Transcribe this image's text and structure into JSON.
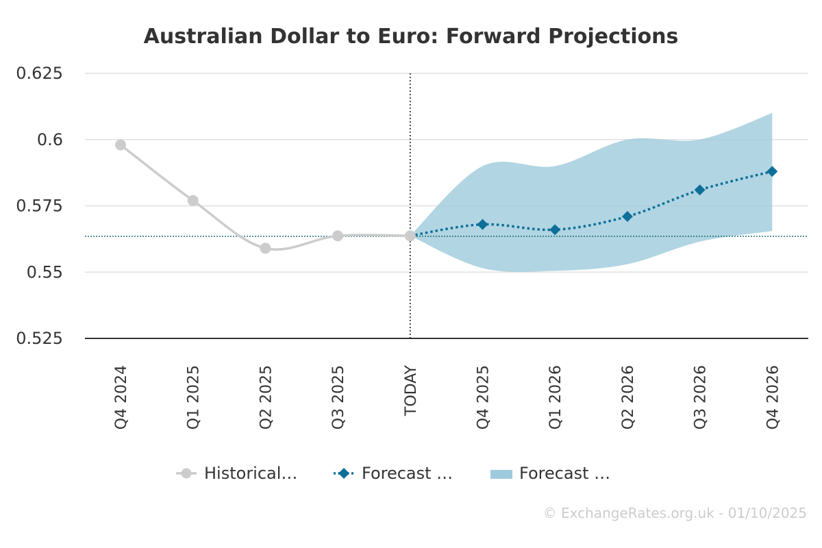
{
  "chart_data": {
    "type": "line",
    "title": "Australian Dollar to Euro: Forward Projections",
    "categories": [
      "Q4 2024",
      "Q1 2025",
      "Q2 2025",
      "Q3 2025",
      "TODAY",
      "Q4 2025",
      "Q1 2026",
      "Q2 2026",
      "Q3 2026",
      "Q4 2026"
    ],
    "ylim": [
      0.525,
      0.625
    ],
    "yticks": [
      0.525,
      0.55,
      0.575,
      0.6,
      0.625
    ],
    "ytick_labels": [
      "0.525",
      "0.55",
      "0.575",
      "0.6",
      "0.625"
    ],
    "grid": true,
    "reference_line": 0.5635,
    "today_marker": "TODAY",
    "series": [
      {
        "name": "Historical…",
        "kind": "line",
        "color": "#cccccc",
        "marker": "circle",
        "values": [
          0.598,
          0.577,
          0.559,
          0.5637,
          0.5637,
          null,
          null,
          null,
          null,
          null
        ]
      },
      {
        "name": "Forecast …",
        "kind": "dotted-line",
        "color": "#0e6f99",
        "marker": "diamond",
        "values": [
          null,
          null,
          null,
          null,
          0.5637,
          0.568,
          0.566,
          0.571,
          0.581,
          0.588
        ]
      },
      {
        "name": "Forecast …",
        "kind": "range",
        "color": "#9ecadb",
        "low": [
          null,
          null,
          null,
          null,
          0.5637,
          0.5515,
          0.5505,
          0.553,
          0.5615,
          0.5655
        ],
        "high": [
          null,
          null,
          null,
          null,
          0.5637,
          0.59,
          0.59,
          0.6,
          0.6,
          0.61
        ]
      }
    ],
    "legend_position": "bottom-center",
    "credit": "© ExchangeRates.org.uk - 01/10/2025"
  }
}
